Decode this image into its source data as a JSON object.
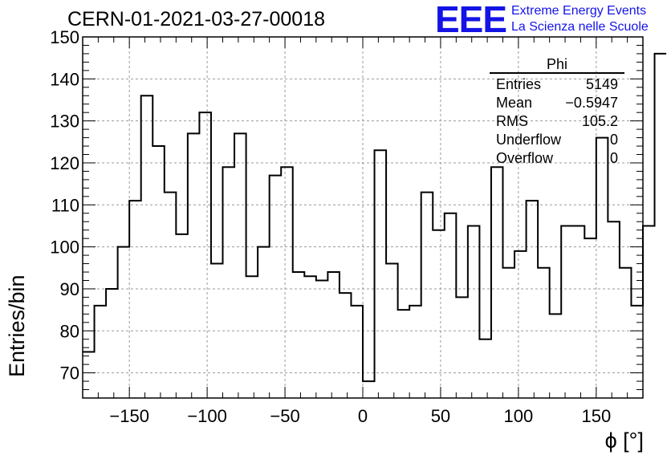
{
  "title": "CERN-01-2021-03-27-00018",
  "logo": {
    "mark": "EEE",
    "line1": "Extreme Energy Events",
    "line2": "La Scienza nelle Scuole",
    "color": "#1414e6"
  },
  "stats": {
    "name": "Phi",
    "rows": [
      {
        "label": "Entries",
        "value": "5149"
      },
      {
        "label": "Mean",
        "value": "−0.5947"
      },
      {
        "label": "RMS",
        "value": "105.2"
      },
      {
        "label": "Underflow",
        "value": "0"
      },
      {
        "label": "Overflow",
        "value": "0"
      }
    ]
  },
  "chart_data": {
    "type": "bar",
    "histogram": true,
    "xlabel": "ϕ [°]",
    "ylabel": "Entries/bin",
    "xlim": [
      -180,
      180
    ],
    "ylim": [
      64,
      150
    ],
    "xticks": [
      -150,
      -100,
      -50,
      0,
      50,
      100,
      150
    ],
    "yticks": [
      70,
      80,
      90,
      100,
      110,
      120,
      130,
      140,
      150
    ],
    "grid": true,
    "bin_width": 7.5,
    "values": [
      75,
      86,
      90,
      100,
      111,
      136,
      124,
      113,
      103,
      127,
      132,
      96,
      119,
      127,
      93,
      100,
      117,
      119,
      94,
      93,
      92,
      94,
      89,
      86,
      68,
      123,
      96,
      85,
      86,
      113,
      104,
      108,
      88,
      105,
      78,
      119,
      95,
      99,
      111,
      95,
      84,
      105,
      105,
      102,
      126,
      106,
      95,
      86,
      105,
      146
    ]
  }
}
